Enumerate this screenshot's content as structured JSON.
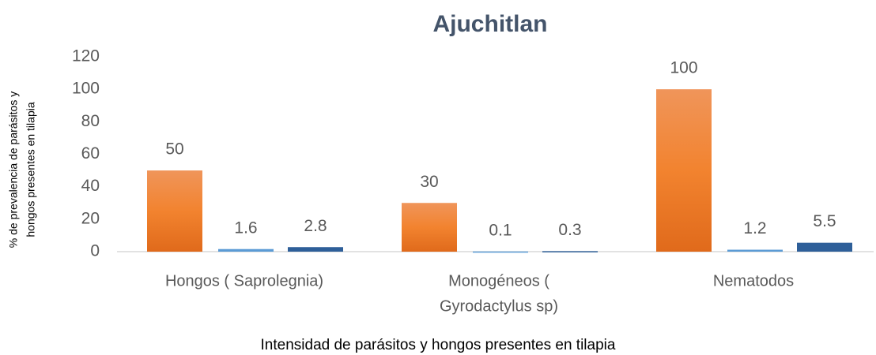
{
  "chart_data": {
    "type": "bar",
    "title": "Ajuchitlan",
    "ylabel": [
      "% de prevalencia de  parásitos y",
      "hongos presentes en tilapia"
    ],
    "xlabel": "Intensidad de  parásitos  y hongos presentes en tilapia",
    "categories": [
      "Hongos ( Saprolegnia)",
      [
        "Monogéneos (",
        "Gyrodactylus sp)"
      ],
      "Nematodos"
    ],
    "series": [
      {
        "color": "#ed7d31",
        "values": [
          50,
          30,
          100
        ]
      },
      {
        "color": "#5b9bd5",
        "values": [
          1.6,
          0.1,
          1.2
        ]
      },
      {
        "color": "#2e5f99",
        "values": [
          2.8,
          0.3,
          5.5
        ]
      }
    ],
    "ylim": [
      0,
      120
    ],
    "yticks": [
      0,
      20,
      40,
      60,
      80,
      100,
      120
    ],
    "grid": false
  }
}
